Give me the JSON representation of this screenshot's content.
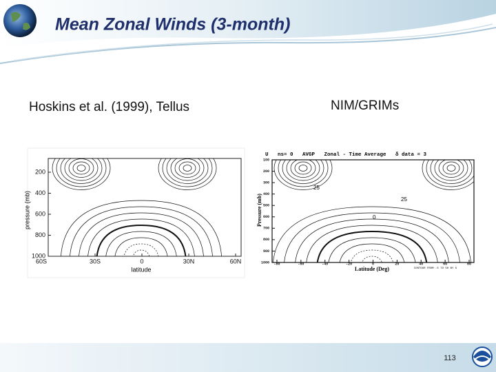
{
  "header": {
    "title": "Mean Zonal Winds (3-month)"
  },
  "captions": [
    "Hoskins et al. (1999), Tellus",
    "NIM/GRIMs"
  ],
  "left_figure": {
    "y_label": "pressure (mb)",
    "x_label": "latitude",
    "y_ticks": [
      "200",
      "400",
      "600",
      "800",
      "1000"
    ],
    "x_ticks": [
      "60S",
      "30S",
      "0",
      "30N",
      "60N"
    ]
  },
  "right_figure": {
    "title": "U   ns= 0   AVGP   Zonal - Time Average   δ data = 3",
    "y_label": "Pressure (mb)",
    "x_label": "Latitude (Deg)",
    "y_ticks": [
      "100",
      "200",
      "300",
      "400",
      "500",
      "600",
      "700",
      "800",
      "900",
      "1000"
    ],
    "x_ticks": [
      "-80",
      "-60",
      "-40",
      "-20",
      "0",
      "20",
      "40",
      "60",
      "80"
    ],
    "contour_labels": [
      "25",
      "25",
      "0"
    ],
    "note": "CONTOUR FROM -5 TO 50 BY 5"
  },
  "footer": {
    "page_number": "113"
  }
}
